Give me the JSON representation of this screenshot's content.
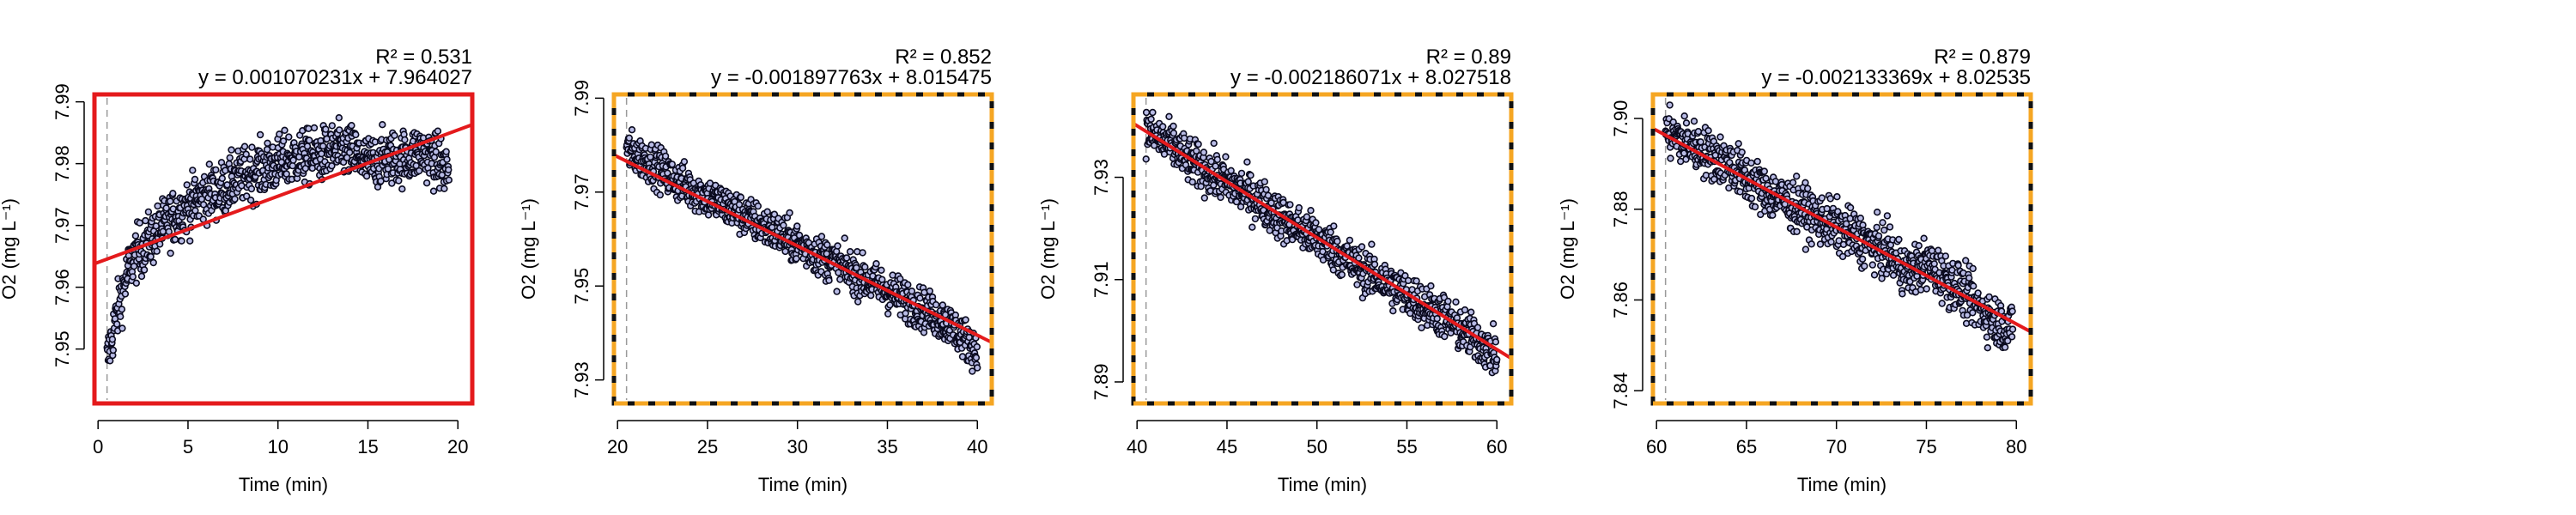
{
  "chart_data": [
    {
      "type": "scatter",
      "panel_style": "solid-red",
      "xlabel": "Time (min)",
      "ylabel": "O2 (mg L⁻¹)",
      "r2_label": "R² = 0.531",
      "equation": "y = 0.001070231x + 7.964027",
      "slope": 0.001070231,
      "intercept": 7.964027,
      "xlim": [
        -0.2,
        20.8
      ],
      "ylim": [
        7.9412,
        7.9912
      ],
      "xticks": [
        0,
        5,
        10,
        15,
        20
      ],
      "xtick_labels": [
        "0",
        "5",
        "10",
        "15",
        "20"
      ],
      "yticks": [
        7.95,
        7.96,
        7.97,
        7.98,
        7.99
      ],
      "ytick_labels": [
        "7.95",
        "7.96",
        "7.97",
        "7.98",
        "7.99"
      ],
      "series": [
        {
          "x": [
            0.5,
            0.7,
            1.0,
            1.5,
            2.0,
            3.0,
            4.0,
            5.0,
            6.0,
            7.0,
            8.0,
            9.0,
            10.0,
            11.0,
            12.0,
            13.0,
            14.0,
            15.0,
            16.0,
            17.0,
            18.0,
            19.0,
            19.5
          ],
          "y": [
            7.948,
            7.951,
            7.955,
            7.961,
            7.965,
            7.968,
            7.971,
            7.973,
            7.975,
            7.976,
            7.978,
            7.979,
            7.98,
            7.981,
            7.981,
            7.982,
            7.982,
            7.98,
            7.981,
            7.981,
            7.982,
            7.98,
            7.979
          ],
          "spread": 0.004
        }
      ],
      "fit_line": {
        "x": [
          -0.2,
          20.8
        ],
        "y": [
          7.9638,
          7.9863
        ]
      },
      "start_line_x": 0.5
    },
    {
      "type": "scatter",
      "panel_style": "dashed-orange",
      "xlabel": "Time (min)",
      "ylabel": "O2 (mg L⁻¹)",
      "r2_label": "R² = 0.852",
      "equation": "y = -0.001897763x + 8.015475",
      "slope": -0.001897763,
      "intercept": 8.015475,
      "xlim": [
        19.8,
        40.8
      ],
      "ylim": [
        7.925,
        7.9908
      ],
      "xticks": [
        20,
        25,
        30,
        35,
        40
      ],
      "xtick_labels": [
        "20",
        "25",
        "30",
        "35",
        "40"
      ],
      "yticks": [
        7.93,
        7.95,
        7.97,
        7.99
      ],
      "ytick_labels": [
        "7.93",
        "7.95",
        "7.97",
        "7.99"
      ],
      "series": [
        {
          "x": [
            20.5,
            21.0,
            22.0,
            23.0,
            24.0,
            25.0,
            26.0,
            27.0,
            28.0,
            29.0,
            30.0,
            31.0,
            32.0,
            33.0,
            34.0,
            35.0,
            36.0,
            37.0,
            38.0,
            39.0,
            40.0
          ],
          "y": [
            7.979,
            7.978,
            7.976,
            7.973,
            7.971,
            7.969,
            7.967,
            7.965,
            7.963,
            7.961,
            7.959,
            7.957,
            7.955,
            7.953,
            7.951,
            7.949,
            7.947,
            7.945,
            7.943,
            7.94,
            7.936
          ],
          "spread": 0.004
        }
      ],
      "fit_line": {
        "x": [
          19.8,
          40.8
        ],
        "y": [
          7.9779,
          7.938
        ]
      },
      "start_line_x": 20.5
    },
    {
      "type": "scatter",
      "panel_style": "dashed-orange",
      "xlabel": "Time (min)",
      "ylabel": "O2 (mg L⁻¹)",
      "r2_label": "R² = 0.89",
      "equation": "y = -0.002186071x + 8.027518",
      "slope": -0.002186071,
      "intercept": 8.027518,
      "xlim": [
        39.8,
        60.8
      ],
      "ylim": [
        7.8858,
        7.9462
      ],
      "xticks": [
        40,
        45,
        50,
        55,
        60
      ],
      "xtick_labels": [
        "40",
        "45",
        "50",
        "55",
        "60"
      ],
      "yticks": [
        7.89,
        7.91,
        7.93
      ],
      "ytick_labels": [
        "7.89",
        "7.91",
        "7.93"
      ],
      "series": [
        {
          "x": [
            40.5,
            41.0,
            42.0,
            43.0,
            44.0,
            45.0,
            46.0,
            47.0,
            48.0,
            49.0,
            50.0,
            51.0,
            52.0,
            53.0,
            54.0,
            55.0,
            56.0,
            57.0,
            58.0,
            59.0,
            60.0
          ],
          "y": [
            7.939,
            7.938,
            7.936,
            7.933,
            7.931,
            7.929,
            7.927,
            7.925,
            7.922,
            7.92,
            7.918,
            7.916,
            7.913,
            7.911,
            7.909,
            7.907,
            7.905,
            7.903,
            7.9,
            7.898,
            7.895
          ],
          "spread": 0.004
        }
      ],
      "fit_line": {
        "x": [
          39.8,
          60.8
        ],
        "y": [
          7.9405,
          7.8946
        ]
      },
      "start_line_x": 40.5
    },
    {
      "type": "scatter",
      "panel_style": "dashed-orange",
      "xlabel": "Time (min)",
      "ylabel": "O2 (mg L⁻¹)",
      "r2_label": "R² = 0.879",
      "equation": "y = -0.002133369x + 8.02535",
      "slope": -0.002133369,
      "intercept": 8.02535,
      "xlim": [
        59.8,
        80.8
      ],
      "ylim": [
        7.8372,
        7.9053
      ],
      "xticks": [
        60,
        65,
        70,
        75,
        80
      ],
      "xtick_labels": [
        "60",
        "65",
        "70",
        "75",
        "80"
      ],
      "yticks": [
        7.84,
        7.86,
        7.88,
        7.9
      ],
      "ytick_labels": [
        "7.84",
        "7.86",
        "7.88",
        "7.90"
      ],
      "series": [
        {
          "x": [
            60.5,
            61.0,
            62.0,
            63.0,
            64.0,
            65.0,
            66.0,
            67.0,
            68.0,
            69.0,
            70.0,
            71.0,
            72.0,
            73.0,
            74.0,
            75.0,
            76.0,
            77.0,
            78.0,
            79.0,
            79.8
          ],
          "y": [
            7.897,
            7.896,
            7.894,
            7.892,
            7.89,
            7.887,
            7.884,
            7.882,
            7.88,
            7.878,
            7.876,
            7.874,
            7.872,
            7.87,
            7.866,
            7.868,
            7.865,
            7.862,
            7.858,
            7.855,
            7.854
          ],
          "spread": 0.005
        }
      ],
      "fit_line": {
        "x": [
          59.8,
          80.8
        ],
        "y": [
          7.8978,
          7.853
        ]
      },
      "start_line_x": 60.5
    }
  ],
  "colors": {
    "points_fill": "#b9bce6",
    "points_stroke": "#0a0a1e",
    "fit_line": "#e41a1c",
    "solid_border": "#e41a1c",
    "dashed_border_dash": "#f5a623",
    "dashed_border_gap": "#111111",
    "start_line": "#9a9a9a"
  }
}
